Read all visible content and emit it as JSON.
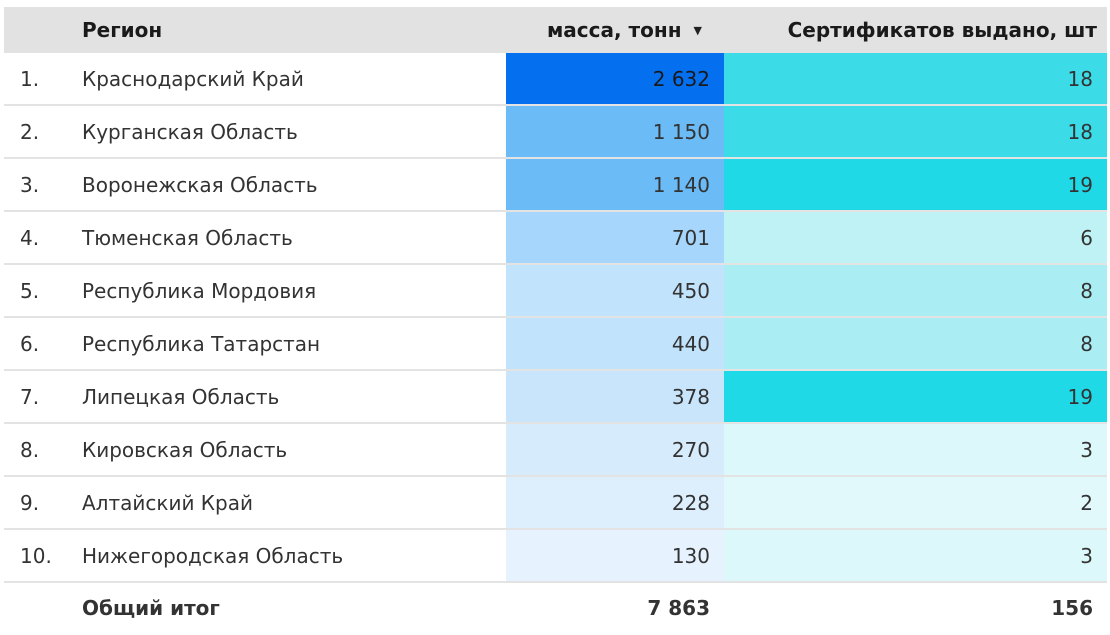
{
  "table": {
    "header": {
      "region": "Регион",
      "mass": "масса, тонн",
      "certs": "Сертификатов выдано, шт",
      "sort_icon": "sort-desc-icon"
    },
    "rows": [
      {
        "idx": "1.",
        "region": "Краснодарский Край",
        "mass": "2 632",
        "certs": "18",
        "mass_color": "#0470ef",
        "cert_color": "#3bdbe8"
      },
      {
        "idx": "2.",
        "region": "Курганская Область",
        "mass": "1 150",
        "certs": "18",
        "mass_color": "#6bbcf6",
        "cert_color": "#3bdbe8"
      },
      {
        "idx": "3.",
        "region": "Воронежская Область",
        "mass": "1 140",
        "certs": "19",
        "mass_color": "#6bbcf6",
        "cert_color": "#20d9e6"
      },
      {
        "idx": "4.",
        "region": "Тюменская Область",
        "mass": "701",
        "certs": "6",
        "mass_color": "#a6d6fb",
        "cert_color": "#bff2f5"
      },
      {
        "idx": "5.",
        "region": "Республика Мордовия",
        "mass": "450",
        "certs": "8",
        "mass_color": "#c2e3fc",
        "cert_color": "#aaeef3"
      },
      {
        "idx": "6.",
        "region": "Республика Татарстан",
        "mass": "440",
        "certs": "8",
        "mass_color": "#c2e3fc",
        "cert_color": "#aaeef3"
      },
      {
        "idx": "7.",
        "region": "Липецкая Область",
        "mass": "378",
        "certs": "19",
        "mass_color": "#c8e5fc",
        "cert_color": "#20d9e6"
      },
      {
        "idx": "8.",
        "region": "Кировская Область",
        "mass": "270",
        "certs": "3",
        "mass_color": "#d6ecfd",
        "cert_color": "#dcf8fa"
      },
      {
        "idx": "9.",
        "region": "Алтайский Край",
        "mass": "228",
        "certs": "2",
        "mass_color": "#ddeffd",
        "cert_color": "#e1f9fb"
      },
      {
        "idx": "10.",
        "region": "Нижегородская Область",
        "mass": "130",
        "certs": "3",
        "mass_color": "#e6f3fe",
        "cert_color": "#dcf8fa"
      }
    ],
    "footer": {
      "label": "Общий итог",
      "mass_total": "7 863",
      "certs_total": "156"
    }
  }
}
